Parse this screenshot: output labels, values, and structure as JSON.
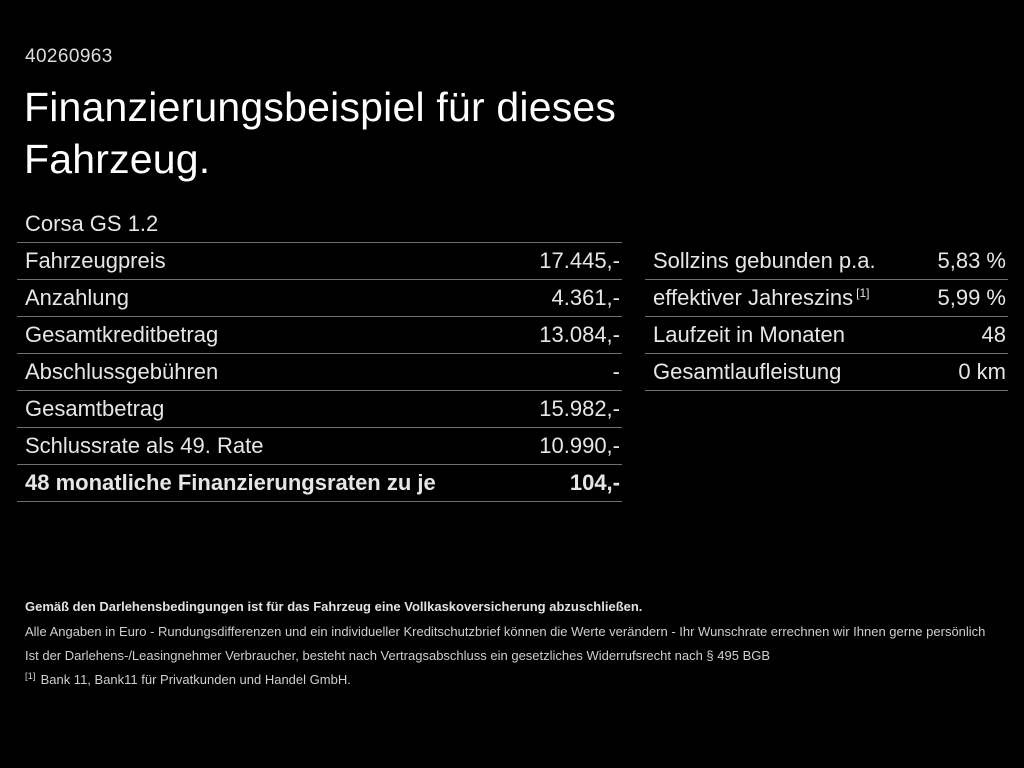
{
  "colors": {
    "background": "#000000",
    "text": "#e6e6e6",
    "title": "#ffffff",
    "divider": "#6f6f6f",
    "footer_text": "#cfcfcf"
  },
  "header": {
    "document_number": "40260963",
    "title_line1": "Finanzierungsbeispiel für dieses",
    "title_line2": "Fahrzeug."
  },
  "vehicle": {
    "model": "Corsa GS 1.2"
  },
  "left_table": {
    "rows": [
      {
        "label": "Fahrzeugpreis",
        "value": "17.445,-"
      },
      {
        "label": "Anzahlung",
        "value": "4.361,-"
      },
      {
        "label": "Gesamtkreditbetrag",
        "value": "13.084,-"
      },
      {
        "label": "Abschlussgebühren",
        "value": "-"
      },
      {
        "label": "Gesamtbetrag",
        "value": "15.982,-"
      },
      {
        "label": "Schlussrate als 49. Rate",
        "value": "10.990,-"
      },
      {
        "label": "48 monatliche Finanzierungsraten zu je",
        "value": "104,-",
        "bold": true
      }
    ]
  },
  "right_table": {
    "rows": [
      {
        "label": "Sollzins gebunden p.a.",
        "value": "5,83 %"
      },
      {
        "label": "effektiver Jahreszins",
        "sup": "[1]",
        "value": "5,99 %"
      },
      {
        "label": "Laufzeit in Monaten",
        "value": "48"
      },
      {
        "label": "Gesamtlaufleistung",
        "value": "0 km"
      }
    ]
  },
  "footer": {
    "insurance_note": "Gemäß den Darlehensbedingungen ist für das Fahrzeug eine Vollkaskoversicherung abzuschließen.",
    "note_line1": "Alle Angaben in Euro - Rundungsdifferenzen und ein individueller Kreditschutzbrief können die Werte verändern - Ihr Wunschrate errechnen wir Ihnen gerne persönlich",
    "note_line2": "Ist der Darlehens-/Leasingnehmer Verbraucher, besteht nach Vertragsabschluss ein gesetzliches Widerrufsrecht nach § 495 BGB",
    "footnote_marker": "[1]",
    "footnote_text": "Bank 11, Bank11 für Privatkunden und Handel GmbH."
  }
}
